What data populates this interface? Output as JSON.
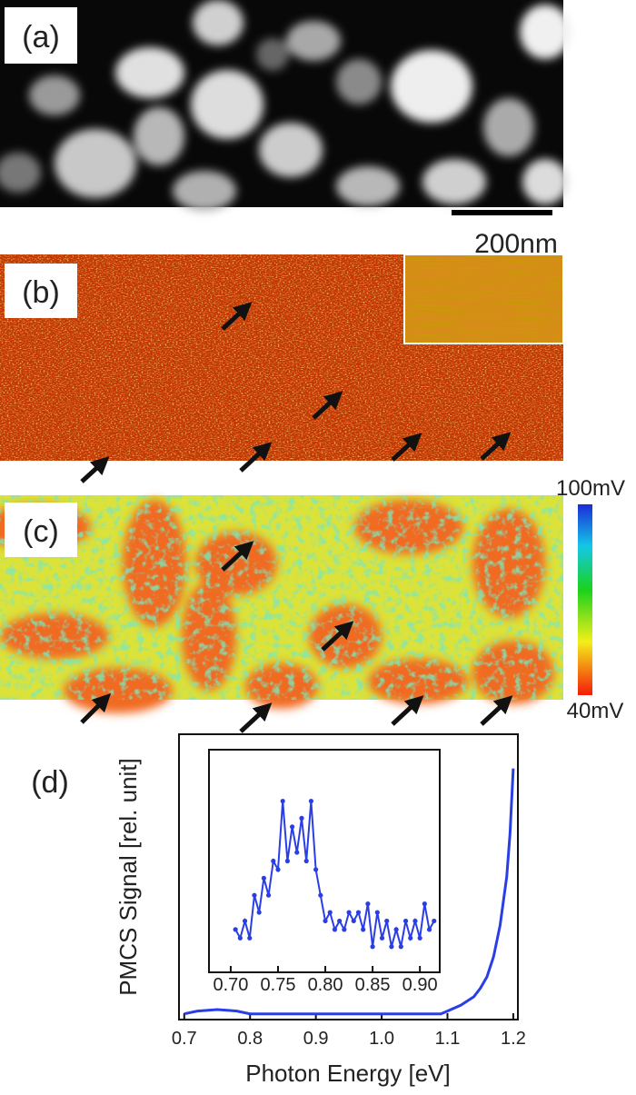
{
  "panels": [
    {
      "label": "(a)"
    },
    {
      "label": "(b)"
    },
    {
      "label": "(c)"
    },
    {
      "label": "(d)"
    }
  ],
  "scale_bar": "200nm",
  "colorbar": {
    "max_label": "100mV",
    "min_label": "40mV"
  },
  "chart_data": [
    {
      "type": "line",
      "x_label": "Photon Energy [eV]",
      "y_label": "PMCS Signal [rel. unit]",
      "xlim": [
        0.692,
        1.207
      ],
      "ylim": [
        0,
        1
      ],
      "xticks": [
        0.7,
        0.8,
        0.9,
        {
          "value": 1,
          "label": "1.0"
        },
        1.1,
        1.2
      ],
      "series": [
        {
          "color": "#2a3ee6",
          "x": [
            0.7,
            0.72,
            0.75,
            0.78,
            0.8,
            0.85,
            0.9,
            0.95,
            1.0,
            1.05,
            1.09,
            1.1,
            1.12,
            1.14,
            1.15,
            1.16,
            1.17,
            1.18,
            1.19,
            1.195,
            1.2
          ],
          "values": [
            0.02,
            0.03,
            0.035,
            0.03,
            0.02,
            0.02,
            0.02,
            0.02,
            0.02,
            0.02,
            0.02,
            0.03,
            0.05,
            0.08,
            0.11,
            0.15,
            0.22,
            0.33,
            0.5,
            0.65,
            0.88
          ]
        }
      ]
    },
    {
      "type": "line",
      "xlim": [
        0.677,
        0.921
      ],
      "ylim": [
        -0.1,
        1.2
      ],
      "xticks": [
        {
          "value": 0.7,
          "label": "0.70"
        },
        0.75,
        {
          "value": 0.8,
          "label": "0.80"
        },
        0.85,
        {
          "value": 0.9,
          "label": "0.90"
        }
      ],
      "series": [
        {
          "color": "#2a3ee6",
          "x": [
            0.705,
            0.71,
            0.715,
            0.72,
            0.725,
            0.73,
            0.735,
            0.74,
            0.745,
            0.75,
            0.755,
            0.76,
            0.765,
            0.77,
            0.775,
            0.78,
            0.785,
            0.79,
            0.795,
            0.8,
            0.805,
            0.81,
            0.815,
            0.82,
            0.825,
            0.83,
            0.835,
            0.84,
            0.845,
            0.85,
            0.855,
            0.86,
            0.865,
            0.87,
            0.875,
            0.88,
            0.885,
            0.89,
            0.895,
            0.9,
            0.905,
            0.91,
            0.915
          ],
          "values": [
            0.15,
            0.1,
            0.2,
            0.1,
            0.35,
            0.25,
            0.45,
            0.35,
            0.55,
            0.5,
            0.9,
            0.55,
            0.75,
            0.6,
            0.8,
            0.55,
            0.9,
            0.5,
            0.35,
            0.2,
            0.25,
            0.15,
            0.2,
            0.15,
            0.25,
            0.2,
            0.25,
            0.15,
            0.3,
            0.05,
            0.25,
            0.1,
            0.2,
            0.05,
            0.15,
            0.05,
            0.2,
            0.1,
            0.2,
            0.1,
            0.3,
            0.15,
            0.2
          ]
        }
      ]
    }
  ]
}
